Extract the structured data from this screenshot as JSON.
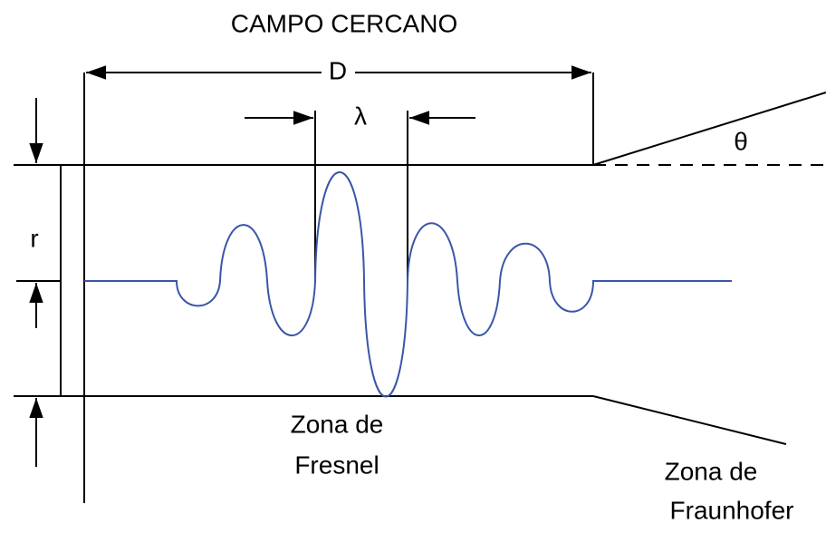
{
  "labels": {
    "title": "CAMPO CERCANO",
    "aperture": "D",
    "wavelength": "λ",
    "angle": "θ",
    "radius": "r"
  },
  "zones": [
    {
      "lines": [
        "Zona de",
        "Fresnel"
      ]
    },
    {
      "lines": [
        "Zona de",
        "Fraunhofer"
      ]
    }
  ]
}
